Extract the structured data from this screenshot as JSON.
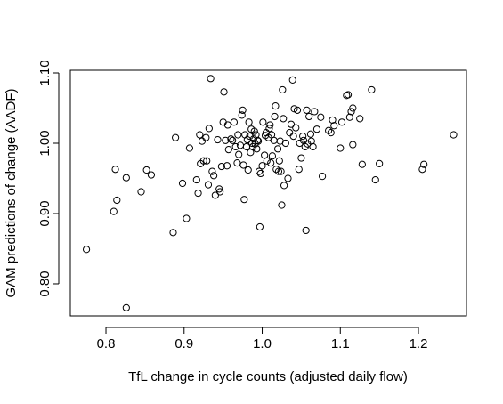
{
  "chart_data": {
    "type": "scatter",
    "xlabel": "TfL change in cycle counts (adjusted daily flow)",
    "ylabel": "GAM predictions of change (AADF)",
    "color": "#000000",
    "xlim": [
      0.7544,
      1.2615
    ],
    "ylim": [
      0.7544,
      1.1038
    ],
    "xticks": [
      0.8,
      0.9,
      {
        "value": 1,
        "label": "1.0"
      },
      1.1,
      1.2
    ],
    "yticks": [
      {
        "value": 0.8,
        "label": "0.80"
      },
      {
        "value": 0.9,
        "label": "0.90"
      },
      {
        "value": 1,
        "label": "1.00"
      },
      {
        "value": 1.1,
        "label": "1.10"
      }
    ],
    "x": [
      0.775,
      0.826,
      0.81,
      0.812,
      0.814,
      0.826,
      0.845,
      0.852,
      0.858,
      0.886,
      0.889,
      0.898,
      0.903,
      0.907,
      0.916,
      0.918,
      0.92,
      0.921,
      0.923,
      0.925,
      0.928,
      0.929,
      0.931,
      0.932,
      0.934,
      0.936,
      0.938,
      0.94,
      0.943,
      0.945,
      0.946,
      0.948,
      0.951,
      0.95,
      0.953,
      0.955,
      0.956,
      0.957,
      0.96,
      0.962,
      0.964,
      0.966,
      0.968,
      0.969,
      0.97,
      0.972,
      0.974,
      0.975,
      0.976,
      0.977,
      0.978,
      0.98,
      0.981,
      0.982,
      0.983,
      0.984,
      0.985,
      0.986,
      0.987,
      0.988,
      0.989,
      0.99,
      0.991,
      0.992,
      0.993,
      0.994,
      0.995,
      0.996,
      0.997,
      0.998,
      1.0,
      1.001,
      1.003,
      1.004,
      1.005,
      1.006,
      1.008,
      1.009,
      1.01,
      1.011,
      1.012,
      1.013,
      1.015,
      1.016,
      1.017,
      1.018,
      1.02,
      1.021,
      1.022,
      1.023,
      1.024,
      1.025,
      1.026,
      1.027,
      1.028,
      1.03,
      1.033,
      1.035,
      1.037,
      1.039,
      1.04,
      1.041,
      1.043,
      1.045,
      1.047,
      1.048,
      1.05,
      1.052,
      1.053,
      1.055,
      1.056,
      1.057,
      1.058,
      1.06,
      1.062,
      1.063,
      1.065,
      1.067,
      1.07,
      1.075,
      1.077,
      1.085,
      1.088,
      1.09,
      1.092,
      1.1,
      1.102,
      1.108,
      1.11,
      1.112,
      1.114,
      1.116,
      1.116,
      1.125,
      1.128,
      1.14,
      1.145,
      1.15,
      1.205,
      1.207,
      1.245
    ],
    "values": [
      0.849,
      0.766,
      0.903,
      0.963,
      0.919,
      0.951,
      0.931,
      0.962,
      0.955,
      0.873,
      1.008,
      0.943,
      0.893,
      0.993,
      0.948,
      0.929,
      1.012,
      0.971,
      1.003,
      0.975,
      1.008,
      0.975,
      0.941,
      1.021,
      1.092,
      0.96,
      0.954,
      0.926,
      1.005,
      0.935,
      0.931,
      0.967,
      1.073,
      1.03,
      1.004,
      0.968,
      1.026,
      0.991,
      1.006,
      1.004,
      1.03,
      0.995,
      0.972,
      1.012,
      0.984,
      0.997,
      1.04,
      1.047,
      0.969,
      0.92,
      1.012,
      0.995,
      1.005,
      0.962,
      1.03,
      1.01,
      0.987,
      1.02,
      1.0,
      0.995,
      1.006,
      1.017,
      0.999,
      1.012,
      0.992,
      1.004,
      1.003,
      0.96,
      0.881,
      0.957,
      0.968,
      1.03,
      0.983,
      1.011,
      1.015,
      0.975,
      1.008,
      1.021,
      1.026,
      0.972,
      1.012,
      0.982,
      1.004,
      1.038,
      1.053,
      0.963,
      0.992,
      0.96,
      0.975,
      1.003,
      0.96,
      0.912,
      1.076,
      1.035,
      0.94,
      1.0,
      0.95,
      1.015,
      1.027,
      1.09,
      1.01,
      1.049,
      1.022,
      1.047,
      0.963,
      1.0,
      0.979,
      1.01,
      1.004,
      0.995,
      0.876,
      1.047,
      0.999,
      1.038,
      1.013,
      1.003,
      0.995,
      1.045,
      1.02,
      1.037,
      0.953,
      1.018,
      1.015,
      1.033,
      1.025,
      0.993,
      1.03,
      1.068,
      1.069,
      1.037,
      1.045,
      1.05,
      0.998,
      1.035,
      0.97,
      1.076,
      0.948,
      0.971,
      0.963,
      0.97,
      1.012
    ]
  }
}
